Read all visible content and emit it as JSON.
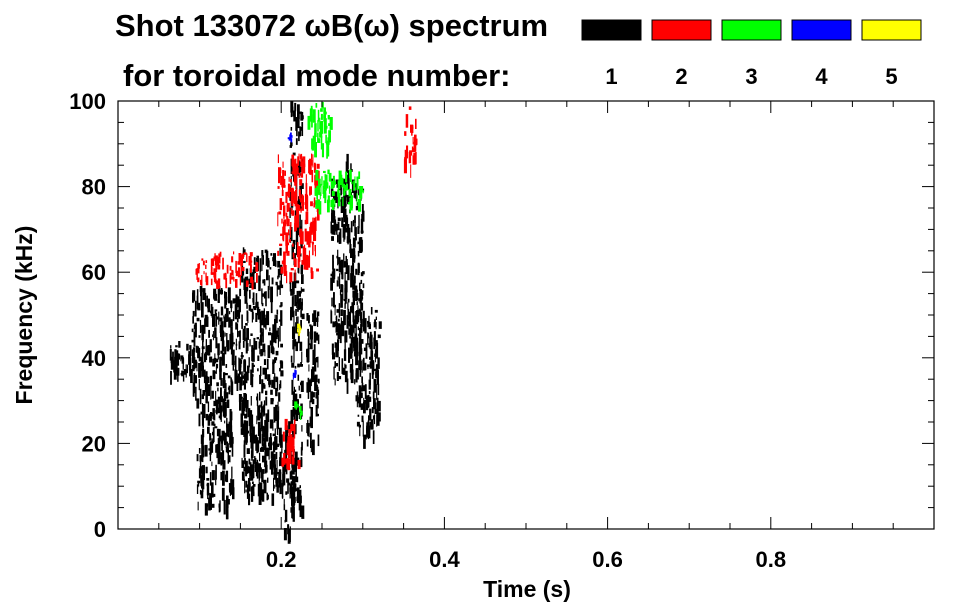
{
  "header": {
    "title": "Shot 133072 ωB(ω) spectrum",
    "subtitle": "for toroidal mode number:"
  },
  "chart_data": {
    "type": "scatter",
    "xlabel": "Time (s)",
    "ylabel": "Frequency (kHz)",
    "xlim": [
      0.0,
      1.0
    ],
    "ylim": [
      0,
      100
    ],
    "xticks": [
      0.2,
      0.4,
      0.6,
      0.8
    ],
    "xtick_labels": [
      "0.2",
      "0.4",
      "0.6",
      "0.8"
    ],
    "yticks": [
      0,
      20,
      40,
      60,
      80,
      100
    ],
    "ytick_labels": [
      "0",
      "20",
      "40",
      "60",
      "80",
      "100"
    ],
    "grid": false,
    "legend_position": "top",
    "legend": [
      {
        "name": "1",
        "color": "#000000"
      },
      {
        "name": "2",
        "color": "#ff0000"
      },
      {
        "name": "3",
        "color": "#00ff00"
      },
      {
        "name": "4",
        "color": "#0000ff"
      },
      {
        "name": "5",
        "color": "#ffff00"
      }
    ],
    "series": [
      {
        "name": "1",
        "color": "#000000",
        "blobs": [
          {
            "x": [
              0.06,
              0.1
            ],
            "y": [
              36,
              44
            ]
          },
          {
            "x": [
              0.09,
              0.15
            ],
            "y": [
              30,
              57
            ]
          },
          {
            "x": [
              0.095,
              0.14
            ],
            "y": [
              5,
              30
            ]
          },
          {
            "x": [
              0.15,
              0.2
            ],
            "y": [
              8,
              66
            ]
          },
          {
            "x": [
              0.2,
              0.215
            ],
            "y": [
              0,
              26
            ]
          },
          {
            "x": [
              0.23,
              0.245
            ],
            "y": [
              20,
              52
            ]
          },
          {
            "x": [
              0.26,
              0.3
            ],
            "y": [
              35,
              82
            ]
          },
          {
            "x": [
              0.29,
              0.32
            ],
            "y": [
              22,
              52
            ]
          },
          {
            "x": [
              0.21,
              0.225
            ],
            "y": [
              4,
              100
            ]
          },
          {
            "x": [
              0.275,
              0.285
            ],
            "y": [
              70,
              88
            ]
          }
        ]
      },
      {
        "name": "2",
        "color": "#ff0000",
        "blobs": [
          {
            "x": [
              0.095,
              0.17
            ],
            "y": [
              58,
              65
            ]
          },
          {
            "x": [
              0.195,
              0.245
            ],
            "y": [
              60,
              88
            ]
          },
          {
            "x": [
              0.2,
              0.22
            ],
            "y": [
              16,
              26
            ]
          },
          {
            "x": [
              0.35,
              0.365
            ],
            "y": [
              85,
              99
            ]
          }
        ]
      },
      {
        "name": "3",
        "color": "#00ff00",
        "blobs": [
          {
            "x": [
              0.23,
              0.26
            ],
            "y": [
              90,
              100
            ]
          },
          {
            "x": [
              0.215,
              0.225
            ],
            "y": [
              26,
              30
            ]
          },
          {
            "x": [
              0.24,
              0.3
            ],
            "y": [
              76,
              84
            ]
          }
        ]
      },
      {
        "name": "4",
        "color": "#0000ff",
        "blobs": [
          {
            "x": [
              0.212,
              0.22
            ],
            "y": [
              36,
              38
            ]
          },
          {
            "x": [
              0.208,
              0.212
            ],
            "y": [
              91,
              93
            ]
          }
        ]
      },
      {
        "name": "5",
        "color": "#ffff00",
        "blobs": [
          {
            "x": [
              0.219,
              0.222
            ],
            "y": [
              46,
              48
            ]
          }
        ]
      }
    ]
  }
}
